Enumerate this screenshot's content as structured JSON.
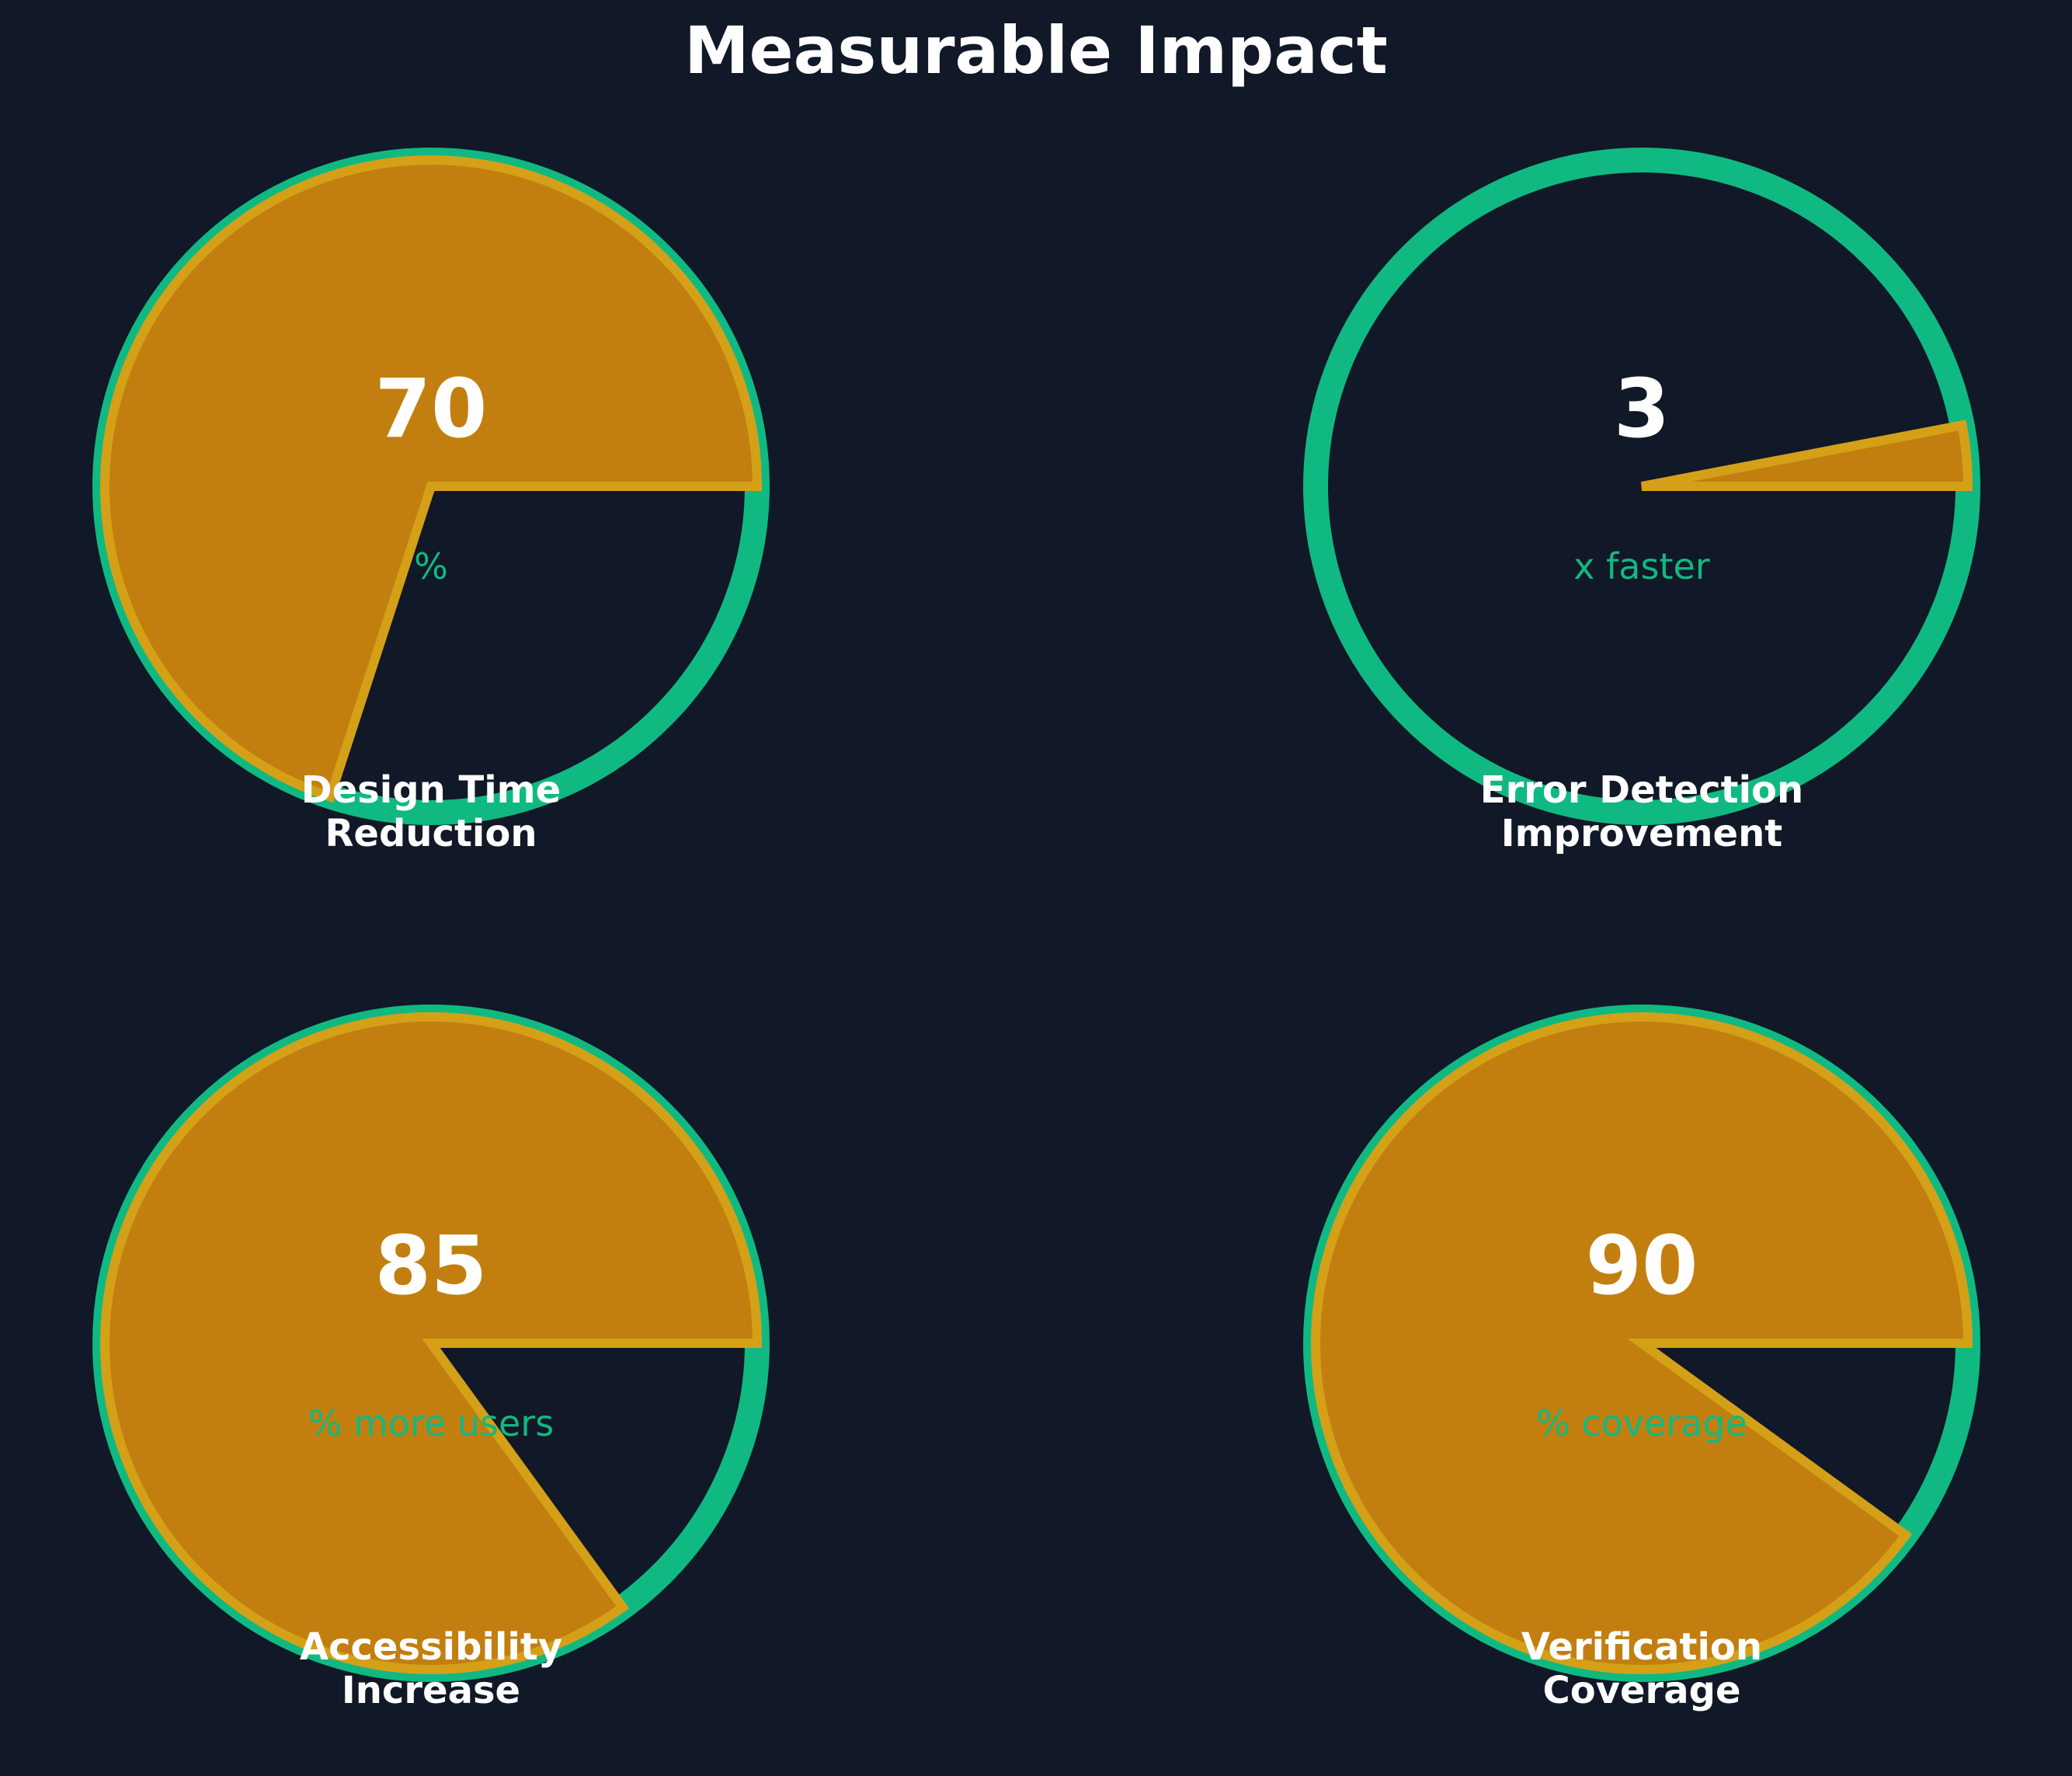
{
  "colors": {
    "background": "#111827",
    "ring": "#10b981",
    "fill": "#c27f10",
    "fill_edge": "#d4a017",
    "text": "#ffffff",
    "unit_text": "#10b981"
  },
  "chart_data": {
    "type": "pie",
    "title": "Measurable Impact",
    "gauges": [
      {
        "label_lines": [
          "Design Time",
          "Reduction"
        ],
        "value": 70,
        "display_value": "70",
        "unit": "%",
        "fill_fraction": 0.7
      },
      {
        "label_lines": [
          "Error Detection",
          "Improvement"
        ],
        "value": 3,
        "display_value": "3",
        "unit": "x faster",
        "fill_fraction": 0.03
      },
      {
        "label_lines": [
          "Accessibility",
          "Increase"
        ],
        "value": 85,
        "display_value": "85",
        "unit": "% more users",
        "fill_fraction": 0.85
      },
      {
        "label_lines": [
          "Verification",
          "Coverage"
        ],
        "value": 90,
        "display_value": "90",
        "unit": "% coverage",
        "fill_fraction": 0.9
      }
    ]
  }
}
